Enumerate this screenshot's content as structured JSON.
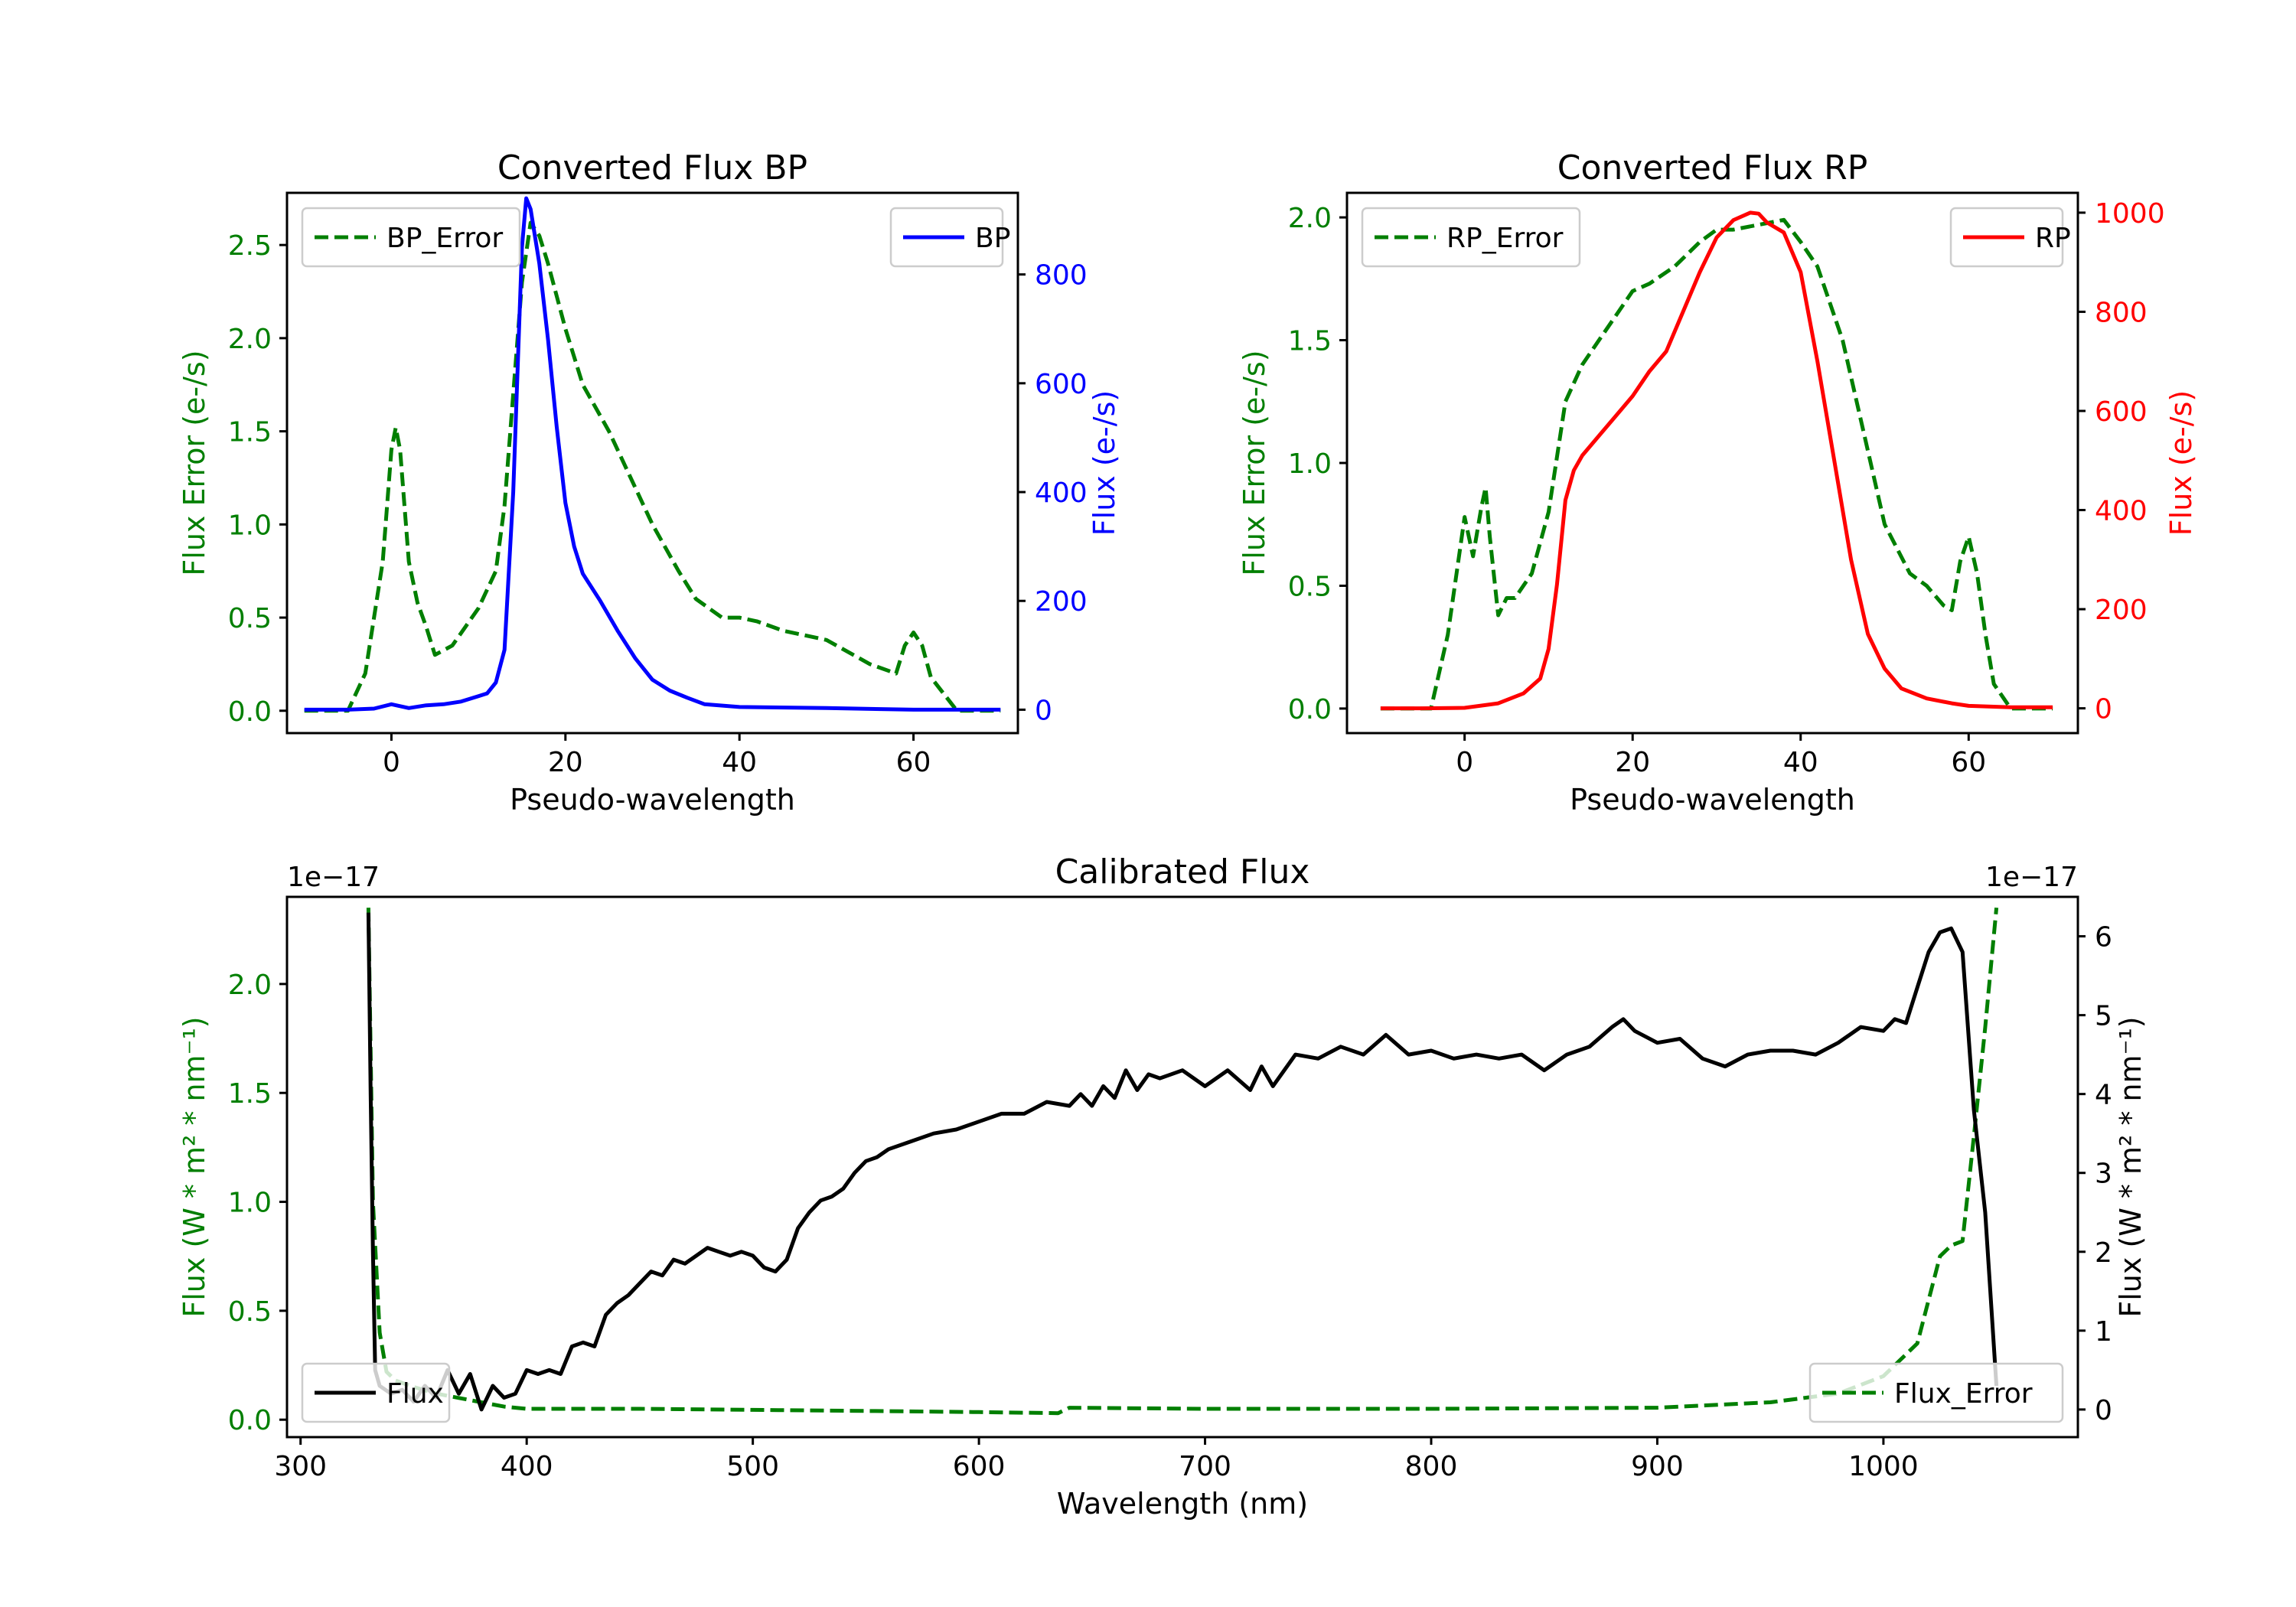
{
  "colors": {
    "error": "#007f00",
    "bp": "#0000ff",
    "rp": "#ff0000",
    "flux": "#000000",
    "axis": "#000000"
  },
  "chart_data": [
    {
      "id": "bp",
      "type": "line",
      "title": "Converted Flux BP",
      "xlabel": "Pseudo-wavelength",
      "xlim": [
        -12,
        72
      ],
      "xticks": [
        0,
        20,
        40,
        60
      ],
      "left_axis": {
        "label": "Flux Error (e-/s)",
        "color": "error",
        "lim": [
          -0.12,
          2.78
        ],
        "ticks": [
          0.0,
          0.5,
          1.0,
          1.5,
          2.0,
          2.5
        ],
        "tick_labels": [
          "0.0",
          "0.5",
          "1.0",
          "1.5",
          "2.0",
          "2.5"
        ]
      },
      "right_axis": {
        "label": "Flux (e-/s)",
        "color": "bp",
        "lim": [
          -43,
          950
        ],
        "ticks": [
          0,
          200,
          400,
          600,
          800
        ],
        "tick_labels": [
          "0",
          "200",
          "400",
          "600",
          "800"
        ]
      },
      "series": [
        {
          "name": "BP_Error",
          "axis": "left",
          "style": "dashed",
          "color": "error",
          "x": [
            -10,
            -5,
            -3,
            -1,
            0,
            0.5,
            1,
            2,
            3,
            4,
            5,
            7,
            10,
            12,
            13,
            14,
            15,
            16,
            17,
            18,
            20,
            22,
            25,
            27,
            30,
            33,
            35,
            38,
            40,
            42,
            45,
            50,
            55,
            58,
            59,
            60,
            61,
            62,
            65,
            70
          ],
          "values": [
            0.0,
            0.0,
            0.2,
            0.8,
            1.4,
            1.52,
            1.4,
            0.8,
            0.58,
            0.45,
            0.3,
            0.35,
            0.55,
            0.75,
            1.1,
            1.7,
            2.3,
            2.62,
            2.55,
            2.4,
            2.05,
            1.75,
            1.5,
            1.3,
            1.0,
            0.75,
            0.6,
            0.5,
            0.5,
            0.48,
            0.43,
            0.38,
            0.25,
            0.2,
            0.35,
            0.42,
            0.35,
            0.18,
            0.0,
            0.0
          ]
        },
        {
          "name": "BP",
          "axis": "right",
          "style": "solid",
          "color": "bp",
          "x": [
            -10,
            -5,
            -2,
            0,
            2,
            4,
            6,
            8,
            10,
            11,
            12,
            13,
            14,
            15,
            15.5,
            16,
            17,
            18,
            19,
            20,
            21,
            22,
            24,
            26,
            28,
            30,
            32,
            34,
            36,
            40,
            50,
            60,
            70
          ],
          "values": [
            0,
            0,
            2,
            10,
            3,
            8,
            10,
            15,
            25,
            30,
            50,
            110,
            400,
            850,
            940,
            920,
            820,
            680,
            520,
            380,
            300,
            250,
            200,
            145,
            95,
            55,
            35,
            22,
            10,
            5,
            3,
            0,
            0
          ]
        }
      ],
      "legends": [
        {
          "text": "BP_Error",
          "position": "upper left"
        },
        {
          "text": "BP",
          "position": "upper right"
        }
      ]
    },
    {
      "id": "rp",
      "type": "line",
      "title": "Converted Flux RP",
      "xlabel": "Pseudo-wavelength",
      "xlim": [
        -14,
        73
      ],
      "xticks": [
        0,
        20,
        40,
        60
      ],
      "left_axis": {
        "label": "Flux Error (e-/s)",
        "color": "error",
        "lim": [
          -0.1,
          2.1
        ],
        "ticks": [
          0.0,
          0.5,
          1.0,
          1.5,
          2.0
        ],
        "tick_labels": [
          "0.0",
          "0.5",
          "1.0",
          "1.5",
          "2.0"
        ]
      },
      "right_axis": {
        "label": "Flux (e-/s)",
        "color": "rp",
        "lim": [
          -50,
          1040
        ],
        "ticks": [
          0,
          200,
          400,
          600,
          800,
          1000
        ],
        "tick_labels": [
          "0",
          "200",
          "400",
          "600",
          "800",
          "1000"
        ]
      },
      "series": [
        {
          "name": "RP_Error",
          "axis": "left",
          "style": "dashed",
          "color": "error",
          "x": [
            -10,
            -4,
            -2,
            0,
            1,
            2,
            2.5,
            3,
            4,
            5,
            6,
            8,
            10,
            12,
            14,
            16,
            18,
            20,
            22,
            25,
            28,
            30,
            32,
            35,
            38,
            40,
            42,
            45,
            48,
            50,
            53,
            55,
            57,
            58,
            59,
            60,
            61,
            62,
            63,
            65,
            70
          ],
          "values": [
            0.0,
            0.0,
            0.3,
            0.78,
            0.62,
            0.82,
            0.9,
            0.7,
            0.38,
            0.45,
            0.45,
            0.55,
            0.8,
            1.25,
            1.4,
            1.5,
            1.6,
            1.7,
            1.73,
            1.8,
            1.9,
            1.95,
            1.95,
            1.97,
            1.99,
            1.9,
            1.8,
            1.5,
            1.05,
            0.75,
            0.55,
            0.5,
            0.42,
            0.4,
            0.6,
            0.7,
            0.55,
            0.3,
            0.1,
            0.0,
            0.0
          ]
        },
        {
          "name": "RP",
          "axis": "right",
          "style": "solid",
          "color": "rp",
          "x": [
            -10,
            -5,
            0,
            4,
            7,
            9,
            10,
            11,
            12,
            13,
            14,
            16,
            18,
            20,
            22,
            24,
            26,
            28,
            30,
            32,
            34,
            35,
            36,
            38,
            40,
            42,
            44,
            46,
            48,
            50,
            52,
            55,
            58,
            60,
            65,
            70
          ],
          "values": [
            0,
            0,
            1,
            10,
            30,
            60,
            120,
            250,
            420,
            480,
            510,
            550,
            590,
            630,
            680,
            720,
            800,
            880,
            950,
            985,
            1000,
            998,
            980,
            960,
            880,
            700,
            500,
            300,
            150,
            80,
            40,
            20,
            10,
            5,
            2,
            2
          ]
        }
      ],
      "legends": [
        {
          "text": "RP_Error",
          "position": "upper left"
        },
        {
          "text": "RP",
          "position": "upper right"
        }
      ]
    },
    {
      "id": "cal",
      "type": "line",
      "title": "Calibrated Flux",
      "xlabel": "Wavelength (nm)",
      "xlim": [
        294,
        1086
      ],
      "xticks": [
        300,
        400,
        500,
        600,
        700,
        800,
        900,
        1000
      ],
      "left_axis": {
        "label": "Flux (W * m² * nm⁻¹)",
        "color": "error",
        "offset_text": "1e−17",
        "lim": [
          -0.08,
          2.4
        ],
        "ticks": [
          0.0,
          0.5,
          1.0,
          1.5,
          2.0
        ],
        "tick_labels": [
          "0.0",
          "0.5",
          "1.0",
          "1.5",
          "2.0"
        ]
      },
      "right_axis": {
        "label": "Flux (W * m² * nm⁻¹)",
        "color": "flux",
        "offset_text": "1e−17",
        "lim": [
          -0.35,
          6.5
        ],
        "ticks": [
          0,
          1,
          2,
          3,
          4,
          5,
          6
        ],
        "tick_labels": [
          "0",
          "1",
          "2",
          "3",
          "4",
          "5",
          "6"
        ]
      },
      "series": [
        {
          "name": "Flux_Error",
          "axis": "left",
          "style": "dashed",
          "color": "error",
          "x": [
            330,
            332,
            335,
            338,
            342,
            350,
            360,
            370,
            380,
            390,
            400,
            450,
            500,
            550,
            600,
            635,
            640,
            700,
            800,
            900,
            950,
            980,
            1000,
            1010,
            1015,
            1020,
            1025,
            1030,
            1035,
            1040,
            1045,
            1050
          ],
          "values": [
            2.35,
            1.0,
            0.4,
            0.22,
            0.18,
            0.15,
            0.12,
            0.1,
            0.08,
            0.06,
            0.05,
            0.05,
            0.045,
            0.04,
            0.035,
            0.03,
            0.055,
            0.05,
            0.05,
            0.055,
            0.08,
            0.12,
            0.2,
            0.3,
            0.35,
            0.55,
            0.75,
            0.8,
            0.82,
            1.3,
            1.8,
            2.35
          ]
        },
        {
          "name": "Flux",
          "axis": "right",
          "style": "solid",
          "color": "flux",
          "x": [
            330,
            331,
            332,
            333,
            335,
            340,
            345,
            350,
            355,
            360,
            365,
            370,
            375,
            380,
            385,
            390,
            395,
            400,
            405,
            410,
            415,
            420,
            425,
            430,
            435,
            440,
            445,
            450,
            455,
            460,
            465,
            470,
            475,
            480,
            485,
            490,
            495,
            500,
            505,
            510,
            515,
            520,
            525,
            530,
            535,
            540,
            545,
            550,
            555,
            560,
            570,
            580,
            590,
            600,
            610,
            620,
            630,
            640,
            645,
            650,
            655,
            660,
            665,
            670,
            675,
            680,
            690,
            700,
            710,
            720,
            725,
            730,
            740,
            750,
            760,
            770,
            780,
            790,
            800,
            810,
            820,
            830,
            840,
            850,
            860,
            870,
            880,
            885,
            890,
            900,
            910,
            920,
            930,
            940,
            950,
            960,
            970,
            980,
            990,
            1000,
            1005,
            1010,
            1015,
            1020,
            1025,
            1030,
            1035,
            1040,
            1045,
            1050
          ],
          "values": [
            6.3,
            4.0,
            2.0,
            0.5,
            0.3,
            0.2,
            0.25,
            0.1,
            0.3,
            0.15,
            0.5,
            0.2,
            0.45,
            0.0,
            0.3,
            0.15,
            0.2,
            0.5,
            0.45,
            0.5,
            0.45,
            0.8,
            0.85,
            0.8,
            1.2,
            1.35,
            1.45,
            1.6,
            1.75,
            1.7,
            1.9,
            1.85,
            1.95,
            2.05,
            2.0,
            1.95,
            2.0,
            1.95,
            1.8,
            1.75,
            1.9,
            2.3,
            2.5,
            2.65,
            2.7,
            2.8,
            3.0,
            3.15,
            3.2,
            3.3,
            3.4,
            3.5,
            3.55,
            3.65,
            3.75,
            3.75,
            3.9,
            3.85,
            4.0,
            3.85,
            4.1,
            3.95,
            4.3,
            4.05,
            4.25,
            4.2,
            4.3,
            4.1,
            4.3,
            4.05,
            4.35,
            4.1,
            4.5,
            4.45,
            4.6,
            4.5,
            4.75,
            4.5,
            4.55,
            4.45,
            4.5,
            4.45,
            4.5,
            4.3,
            4.5,
            4.6,
            4.85,
            4.95,
            4.8,
            4.65,
            4.7,
            4.45,
            4.35,
            4.5,
            4.55,
            4.55,
            4.5,
            4.65,
            4.85,
            4.8,
            4.95,
            4.9,
            5.35,
            5.8,
            6.05,
            6.1,
            5.8,
            3.8,
            2.5,
            0.3
          ]
        }
      ],
      "legends": [
        {
          "text": "Flux",
          "position": "lower left"
        },
        {
          "text": "Flux_Error",
          "position": "lower right"
        }
      ]
    }
  ]
}
